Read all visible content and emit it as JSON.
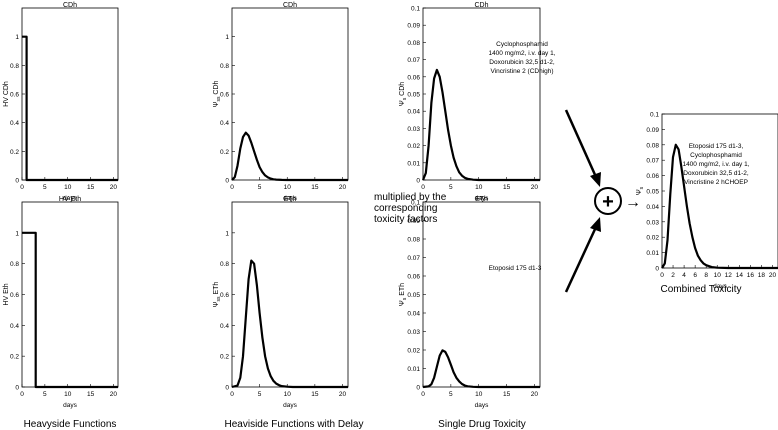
{
  "chart_data": [
    {
      "type": "line",
      "title": "CDh",
      "xlabel": "days",
      "ylabel": "HV CDh",
      "xlim": [
        0,
        21
      ],
      "ylim": [
        0,
        1.2
      ],
      "xticks": [
        "0",
        "5",
        "10",
        "15",
        "20"
      ],
      "yticks": [
        "0",
        "0.2",
        "0.4",
        "0.6",
        "0.8",
        "1"
      ],
      "series": [
        {
          "x": [
            0,
            1,
            1,
            21
          ],
          "y": [
            1,
            1,
            0,
            0
          ]
        }
      ]
    },
    {
      "type": "line",
      "title": "CDh",
      "xlabel": "days",
      "ylabel": "Ψ_ss CDh",
      "xlim": [
        0,
        21
      ],
      "ylim": [
        0,
        1.2
      ],
      "xticks": [
        "0",
        "5",
        "10",
        "15",
        "20"
      ],
      "yticks": [
        "0",
        "0.2",
        "0.4",
        "0.6",
        "0.8",
        "1"
      ],
      "series": [
        {
          "x": [
            0,
            0.5,
            1,
            1.5,
            2,
            2.5,
            3,
            3.5,
            4,
            4.5,
            5,
            5.5,
            6,
            6.5,
            7,
            7.5,
            8,
            9,
            10,
            12,
            15,
            21
          ],
          "y": [
            0,
            0.02,
            0.1,
            0.22,
            0.3,
            0.33,
            0.31,
            0.26,
            0.2,
            0.14,
            0.09,
            0.055,
            0.032,
            0.018,
            0.01,
            0.005,
            0.003,
            0.001,
            0,
            0,
            0,
            0
          ]
        }
      ]
    },
    {
      "type": "line",
      "title": "CDh",
      "xlabel": "days",
      "ylabel": "Ψ_s CDh",
      "xlim": [
        0,
        21
      ],
      "ylim": [
        0,
        0.1
      ],
      "xticks": [
        "0",
        "5",
        "10",
        "15",
        "20"
      ],
      "yticks": [
        "0",
        "0.01",
        "0.02",
        "0.03",
        "0.04",
        "0.05",
        "0.06",
        "0.07",
        "0.08",
        "0.09",
        "0.1"
      ],
      "annotation": [
        "Cyclophosphamid",
        "1400 mg/m2, i.v. day 1,",
        "Doxorubicin 32,5 d1-2,",
        "Vincristine 2 (CDhigh)"
      ],
      "series": [
        {
          "x": [
            0,
            0.5,
            1,
            1.5,
            2,
            2.5,
            3,
            3.5,
            4,
            4.5,
            5,
            5.5,
            6,
            6.5,
            7,
            7.5,
            8,
            9,
            10,
            12,
            15,
            21
          ],
          "y": [
            0,
            0.004,
            0.02,
            0.045,
            0.059,
            0.064,
            0.06,
            0.051,
            0.04,
            0.029,
            0.02,
            0.013,
            0.008,
            0.0045,
            0.0025,
            0.0013,
            0.0007,
            0.0002,
            0,
            0,
            0,
            0
          ]
        }
      ]
    },
    {
      "type": "line",
      "title": "HV Eth",
      "xlabel": "days",
      "ylabel": "HV Eth",
      "xlim": [
        0,
        21
      ],
      "ylim": [
        0,
        1.2
      ],
      "xticks": [
        "0",
        "5",
        "10",
        "15",
        "20"
      ],
      "yticks": [
        "0",
        "0.2",
        "0.4",
        "0.6",
        "0.8",
        "1"
      ],
      "series": [
        {
          "x": [
            0,
            3,
            3,
            21
          ],
          "y": [
            1,
            1,
            0,
            0
          ]
        }
      ]
    },
    {
      "type": "line",
      "title": "ETh",
      "xlabel": "days",
      "ylabel": "Ψ_ss ETh",
      "xlim": [
        0,
        21
      ],
      "ylim": [
        0,
        1.2
      ],
      "xticks": [
        "0",
        "5",
        "10",
        "15",
        "20"
      ],
      "yticks": [
        "0",
        "0.2",
        "0.4",
        "0.6",
        "0.8",
        "1"
      ],
      "series": [
        {
          "x": [
            0,
            1,
            1.5,
            2,
            2.5,
            3,
            3.5,
            4,
            4.5,
            5,
            5.5,
            6,
            6.5,
            7,
            7.5,
            8,
            8.5,
            9,
            10,
            11,
            13,
            16,
            21
          ],
          "y": [
            0,
            0.01,
            0.06,
            0.2,
            0.45,
            0.7,
            0.82,
            0.8,
            0.66,
            0.48,
            0.32,
            0.2,
            0.12,
            0.07,
            0.04,
            0.022,
            0.012,
            0.006,
            0.002,
            0,
            0,
            0,
            0
          ]
        }
      ]
    },
    {
      "type": "line",
      "title": "ETh",
      "xlabel": "days",
      "ylabel": "Ψ_s ETh",
      "xlim": [
        0,
        21
      ],
      "ylim": [
        0,
        0.1
      ],
      "xticks": [
        "0",
        "5",
        "10",
        "15",
        "20"
      ],
      "yticks": [
        "0",
        "0.01",
        "0.02",
        "0.03",
        "0.04",
        "0.05",
        "0.06",
        "0.07",
        "0.08",
        "0.09",
        "0.1"
      ],
      "annotation": [
        "Etoposid 175 d1-3"
      ],
      "series": [
        {
          "x": [
            0,
            1,
            1.5,
            2,
            2.5,
            3,
            3.5,
            4,
            4.5,
            5,
            5.5,
            6,
            6.5,
            7,
            7.5,
            8,
            9,
            10,
            12,
            15,
            21
          ],
          "y": [
            0,
            0.0003,
            0.0015,
            0.005,
            0.011,
            0.017,
            0.0198,
            0.019,
            0.016,
            0.012,
            0.008,
            0.005,
            0.003,
            0.0016,
            0.0008,
            0.0004,
            0.0001,
            0,
            0,
            0,
            0
          ]
        }
      ]
    },
    {
      "type": "line",
      "title": "",
      "xlabel": "days",
      "ylabel": "Ψ_s",
      "xlim": [
        0,
        21
      ],
      "ylim": [
        0,
        0.1
      ],
      "xticks": [
        "0",
        "2",
        "4",
        "6",
        "8",
        "10",
        "12",
        "14",
        "16",
        "18",
        "20"
      ],
      "yticks": [
        "0",
        "0.01",
        "0.02",
        "0.03",
        "0.04",
        "0.05",
        "0.06",
        "0.07",
        "0.08",
        "0.09",
        "0.1"
      ],
      "annotation": [
        "Etoposid 175 d1-3,",
        "Cyclophosphamid",
        "1400 mg/m2, i.v. day 1,",
        "Doxorubicin 32,5 d1-2,",
        "Vincristine 2 hCHOEP"
      ],
      "series": [
        {
          "x": [
            0,
            0.5,
            1,
            1.5,
            2,
            2.5,
            3,
            3.5,
            4,
            4.5,
            5,
            5.5,
            6,
            6.5,
            7,
            7.5,
            8,
            9,
            10,
            12,
            15,
            21
          ],
          "y": [
            0,
            0.003,
            0.018,
            0.048,
            0.072,
            0.08,
            0.077,
            0.066,
            0.053,
            0.04,
            0.029,
            0.02,
            0.013,
            0.008,
            0.005,
            0.003,
            0.0018,
            0.0006,
            0.0002,
            0,
            0,
            0
          ]
        }
      ]
    }
  ],
  "captions": {
    "col1": "Heavyside Functions",
    "col2": "Heaviside Functions with Delay",
    "col3": "Single Drug Toxicity",
    "combined": "Combined Toxicity",
    "multiplied": [
      "multiplied by the",
      "corresponding",
      "toxicity factors"
    ]
  },
  "operator_symbol": "+",
  "arrow_symbol": "→",
  "colors": {
    "line": "#000000",
    "background": "#ffffff"
  }
}
